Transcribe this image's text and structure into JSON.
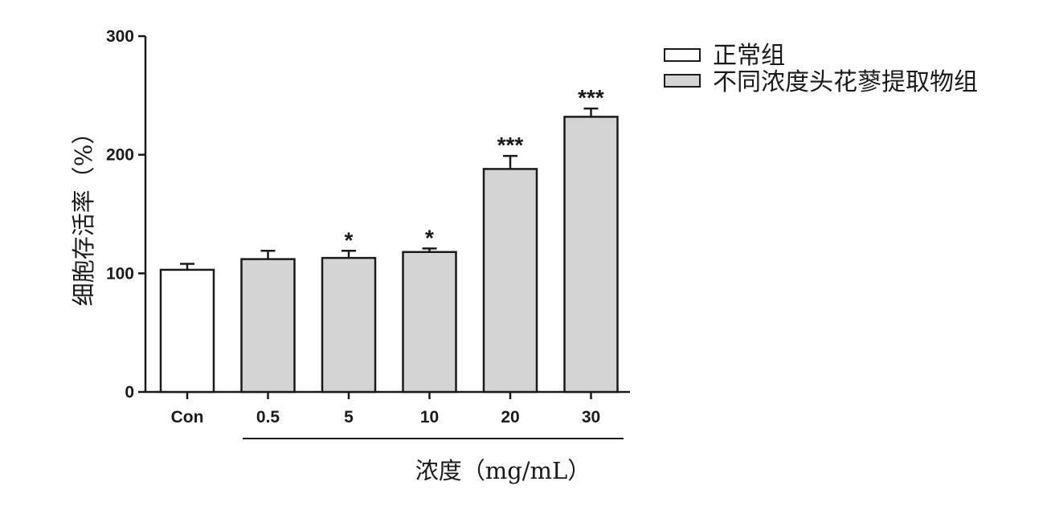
{
  "chart_data": {
    "type": "bar",
    "categories": [
      "Con",
      "0.5",
      "5",
      "10",
      "20",
      "30"
    ],
    "values": [
      103,
      112,
      113,
      118,
      188,
      232
    ],
    "errors": [
      5,
      7,
      6,
      3,
      11,
      7
    ],
    "significance": [
      "",
      "",
      "*",
      "*",
      "***",
      "***"
    ],
    "series_group": [
      0,
      1,
      1,
      1,
      1,
      1
    ],
    "ylabel": "细胞存活率（%）",
    "xlabel": "浓度（mg/mL）",
    "ylim": [
      0,
      300
    ],
    "yticks": [
      0,
      100,
      200,
      300
    ],
    "grid": false,
    "legend_position": "top-right",
    "legend": [
      {
        "name": "正常组",
        "color": "#ffffff"
      },
      {
        "name": "不同浓度头花蓼提取物组",
        "color": "#d4d4d4"
      }
    ]
  }
}
